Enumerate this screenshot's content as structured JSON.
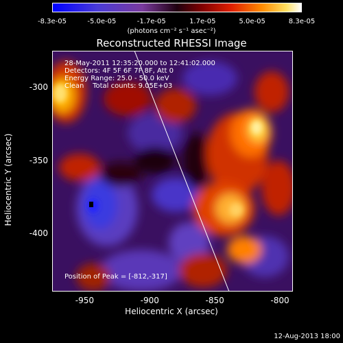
{
  "colorbar": {
    "ticks": [
      "-8.3e-05",
      "-5.0e-05",
      "-1.7e-05",
      "1.7e-05",
      "5.0e-05",
      "8.3e-05"
    ],
    "tick_values": [
      -8.3e-05,
      -5e-05,
      -1.7e-05,
      1.7e-05,
      5e-05,
      8.3e-05
    ],
    "units": "(photons cm⁻² s⁻¹ asec⁻²)"
  },
  "title": "Reconstructed RHESSI Image",
  "info": {
    "time": "28-May-2011 12:35:20.000 to 12:41:02.000",
    "detectors": "Detectors: 4F 5F 6F 7F 8F, Att 0",
    "energy": "Energy Range: 25.0 - 50.0 keV",
    "clean": "Clean    Total counts: 9.05E+03",
    "peak": "Position of Peak = [-812,-317]"
  },
  "axes": {
    "xlabel": "Heliocentric X (arcsec)",
    "ylabel": "Heliocentric Y (arcsec)",
    "xticks": [
      "-950",
      "-900",
      "-850",
      "-800"
    ],
    "xtick_values": [
      -950,
      -900,
      -850,
      -800
    ],
    "yticks": [
      "-300",
      "-350",
      "-400"
    ],
    "ytick_values": [
      -300,
      -350,
      -400
    ],
    "xlim": [
      -975,
      -790
    ],
    "ylim": [
      -440,
      -275
    ]
  },
  "timestamp": "12-Aug-2013 18:00"
}
